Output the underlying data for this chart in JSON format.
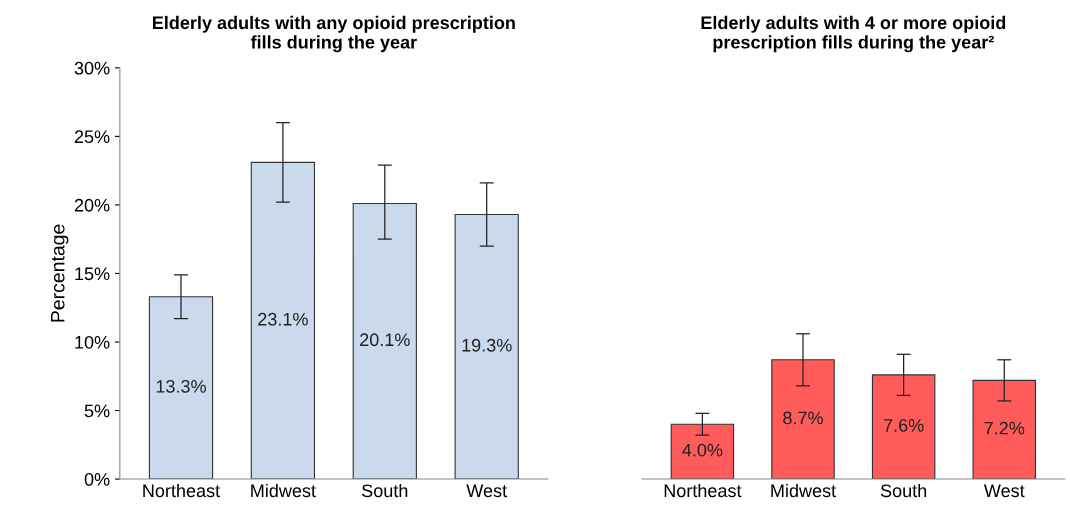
{
  "chart_data": [
    {
      "type": "bar",
      "title": "Elderly adults with any opioid prescription\nfills during the year",
      "ylabel": "Percentage",
      "categories": [
        "Northeast",
        "Midwest",
        "South",
        "West"
      ],
      "series": [
        {
          "color": "#cbd9ec",
          "values": [
            13.3,
            23.1,
            20.1,
            19.3
          ],
          "value_labels": [
            "13.3%",
            "23.1%",
            "20.1%",
            "19.3%"
          ],
          "errors": [
            [
              11.7,
              14.9
            ],
            [
              20.2,
              26.0
            ],
            [
              17.5,
              22.9
            ],
            [
              17.0,
              21.6
            ]
          ]
        }
      ],
      "ylim": [
        0,
        30
      ],
      "yticks": [
        {
          "value": 0,
          "label": "0%"
        },
        {
          "value": 5,
          "label": "5%"
        },
        {
          "value": 10,
          "label": "10%"
        },
        {
          "value": 15,
          "label": "15%"
        },
        {
          "value": 20,
          "label": "20%"
        },
        {
          "value": 25,
          "label": "25%"
        },
        {
          "value": 30,
          "label": "30%"
        }
      ],
      "grid": false
    },
    {
      "type": "bar",
      "title": "Elderly adults with 4 or more opioid\nprescription fills during the year²",
      "categories": [
        "Northeast",
        "Midwest",
        "South",
        "West"
      ],
      "series": [
        {
          "color": "#ff5b5b",
          "values": [
            4.0,
            8.7,
            7.6,
            7.2
          ],
          "value_labels": [
            "4.0%",
            "8.7%",
            "7.6%",
            "7.2%"
          ],
          "errors": [
            [
              3.2,
              4.8
            ],
            [
              6.8,
              10.6
            ],
            [
              6.1,
              9.1
            ],
            [
              5.7,
              8.7
            ]
          ]
        }
      ],
      "ylim": [
        0,
        30
      ],
      "tick_labels": "x",
      "grid": false
    }
  ]
}
